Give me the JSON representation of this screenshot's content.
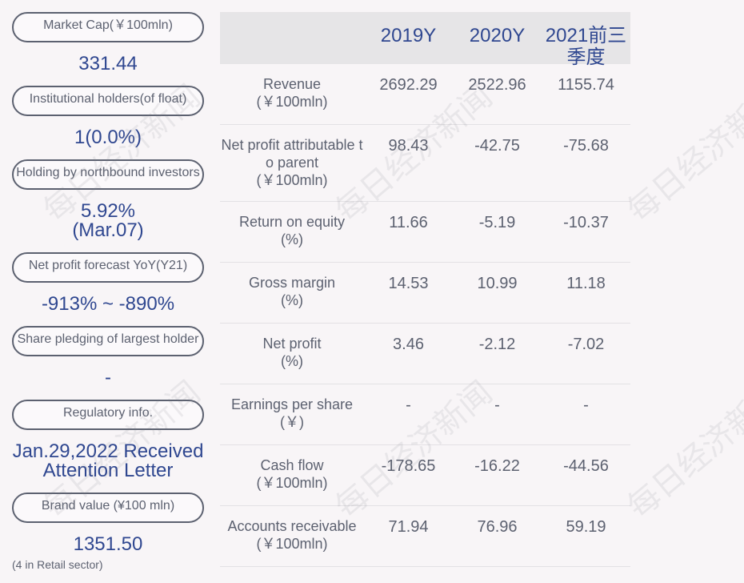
{
  "metrics": [
    {
      "label": "Market Cap(￥100mln)",
      "value": "331.44"
    },
    {
      "label": "Institutional holders(of float)",
      "value": "1(0.0%)"
    },
    {
      "label": "Holding by northbound investors",
      "value": "5.92%",
      "value2": "(Mar.07)"
    },
    {
      "label": "Net profit forecast YoY(Y21)",
      "value": "-913% ~ -890%"
    },
    {
      "label": "Share pledging of largest holder",
      "value": "-"
    },
    {
      "label": "Regulatory info.",
      "value": "Jan.29,2022 Received",
      "value2": "Attention Letter"
    },
    {
      "label": "Brand value (¥100 mln)",
      "value": "1351.50",
      "note": "(4 in Retail sector)"
    }
  ],
  "table": {
    "columns": [
      "2019Y",
      "2020Y",
      "2021前三季度"
    ],
    "rows": [
      {
        "label": "Revenue",
        "unit": "(￥100mln)",
        "values": [
          "2692.29",
          "2522.96",
          "1155.74"
        ]
      },
      {
        "label": "Net profit attributable to parent",
        "unit": "(￥100mln)",
        "values": [
          "98.43",
          "-42.75",
          "-75.68"
        ]
      },
      {
        "label": "Return on equity",
        "unit": "(%)",
        "values": [
          "11.66",
          "-5.19",
          "-10.37"
        ]
      },
      {
        "label": "Gross margin",
        "unit": "(%)",
        "values": [
          "14.53",
          "10.99",
          "11.18"
        ]
      },
      {
        "label": "Net profit",
        "unit": "(%)",
        "values": [
          "3.46",
          "-2.12",
          "-7.02"
        ]
      },
      {
        "label": "Earnings per share",
        "unit": "(￥)",
        "values": [
          "-",
          "-",
          "-"
        ]
      },
      {
        "label": "Cash flow",
        "unit": "(￥100mln)",
        "values": [
          "-178.65",
          "-16.22",
          "-44.56"
        ]
      },
      {
        "label": "Accounts receivable",
        "unit": "(￥100mln)",
        "values": [
          "71.94",
          "76.96",
          "59.19"
        ]
      }
    ]
  },
  "watermark": "每日经济新闻",
  "colors": {
    "accent": "#2f4790",
    "text": "#5c6170",
    "header_bg": "#e6e5e7",
    "background": "#f8f5f7"
  }
}
